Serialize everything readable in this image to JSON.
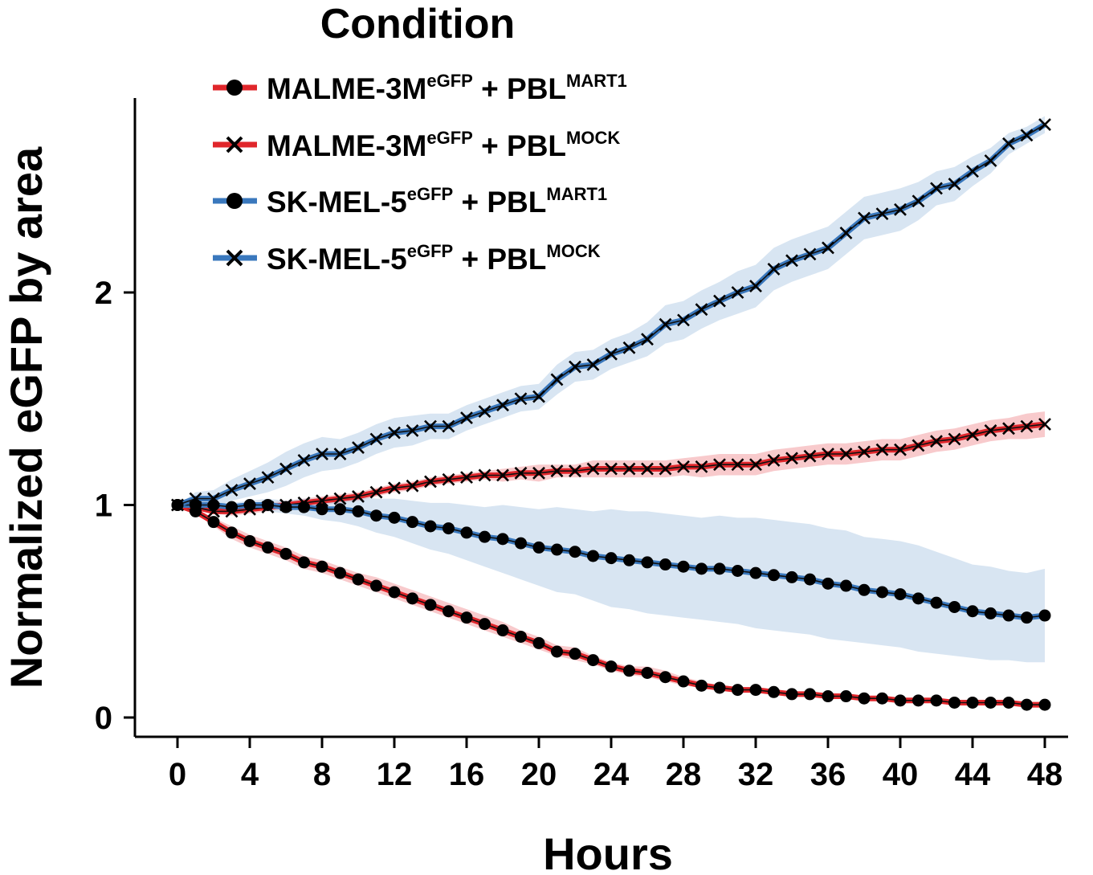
{
  "chart_data": {
    "type": "line",
    "xlabel": "Hours",
    "ylabel": "Normalized eGFP by area",
    "xlim": [
      0,
      48
    ],
    "ylim": [
      -0.05,
      2.9
    ],
    "xticks": [
      "0",
      "4",
      "8",
      "12",
      "16",
      "20",
      "24",
      "28",
      "32",
      "36",
      "40",
      "44",
      "48"
    ],
    "yticks": [
      "0",
      "1",
      "2"
    ],
    "legend": {
      "title": "Condition",
      "placement": "top-left"
    },
    "x": [
      0,
      1,
      2,
      3,
      4,
      5,
      6,
      7,
      8,
      9,
      10,
      11,
      12,
      13,
      14,
      15,
      16,
      17,
      18,
      19,
      20,
      21,
      22,
      23,
      24,
      25,
      26,
      27,
      28,
      29,
      30,
      31,
      32,
      33,
      34,
      35,
      36,
      37,
      38,
      39,
      40,
      41,
      42,
      43,
      44,
      45,
      46,
      47,
      48
    ],
    "series": [
      {
        "name": "MALME-3M eGFP + PBL MART1",
        "label": {
          "cell": "MALME-3M",
          "cell_sup": "eGFP",
          "mid": " + PBL",
          "pbl_sup": "MART1"
        },
        "color": "#e0262b",
        "ribbon_color": "#f08a8d",
        "marker": "circle",
        "values": [
          1.0,
          0.97,
          0.92,
          0.87,
          0.83,
          0.8,
          0.77,
          0.73,
          0.71,
          0.68,
          0.65,
          0.62,
          0.59,
          0.56,
          0.53,
          0.5,
          0.47,
          0.44,
          0.41,
          0.38,
          0.35,
          0.31,
          0.3,
          0.27,
          0.24,
          0.22,
          0.21,
          0.19,
          0.17,
          0.15,
          0.14,
          0.13,
          0.13,
          0.12,
          0.11,
          0.11,
          0.1,
          0.1,
          0.09,
          0.09,
          0.08,
          0.08,
          0.08,
          0.07,
          0.07,
          0.07,
          0.07,
          0.06,
          0.06
        ],
        "lower": [
          1.0,
          0.96,
          0.9,
          0.84,
          0.8,
          0.77,
          0.74,
          0.7,
          0.68,
          0.65,
          0.62,
          0.59,
          0.56,
          0.53,
          0.5,
          0.47,
          0.44,
          0.41,
          0.38,
          0.35,
          0.32,
          0.29,
          0.27,
          0.25,
          0.22,
          0.2,
          0.19,
          0.17,
          0.15,
          0.14,
          0.13,
          0.12,
          0.12,
          0.11,
          0.1,
          0.1,
          0.09,
          0.09,
          0.08,
          0.08,
          0.07,
          0.07,
          0.07,
          0.06,
          0.06,
          0.06,
          0.06,
          0.05,
          0.05
        ],
        "upper": [
          1.0,
          0.98,
          0.94,
          0.9,
          0.86,
          0.83,
          0.8,
          0.76,
          0.74,
          0.71,
          0.68,
          0.66,
          0.63,
          0.6,
          0.57,
          0.54,
          0.51,
          0.48,
          0.45,
          0.41,
          0.38,
          0.34,
          0.33,
          0.29,
          0.26,
          0.24,
          0.24,
          0.22,
          0.19,
          0.17,
          0.15,
          0.14,
          0.14,
          0.13,
          0.12,
          0.12,
          0.11,
          0.11,
          0.1,
          0.1,
          0.09,
          0.09,
          0.09,
          0.08,
          0.08,
          0.08,
          0.08,
          0.07,
          0.07
        ]
      },
      {
        "name": "MALME-3M eGFP + PBL MOCK",
        "label": {
          "cell": "MALME-3M",
          "cell_sup": "eGFP",
          "mid": " + PBL",
          "pbl_sup": "MOCK"
        },
        "color": "#e0262b",
        "ribbon_color": "#f08a8d",
        "marker": "x",
        "values": [
          1.0,
          0.99,
          0.97,
          0.97,
          0.98,
          0.99,
          1.0,
          1.01,
          1.02,
          1.03,
          1.04,
          1.06,
          1.08,
          1.09,
          1.11,
          1.12,
          1.13,
          1.14,
          1.14,
          1.15,
          1.15,
          1.16,
          1.16,
          1.17,
          1.17,
          1.17,
          1.17,
          1.17,
          1.18,
          1.18,
          1.19,
          1.19,
          1.19,
          1.21,
          1.22,
          1.23,
          1.24,
          1.24,
          1.25,
          1.26,
          1.26,
          1.28,
          1.3,
          1.31,
          1.33,
          1.35,
          1.36,
          1.37,
          1.38
        ],
        "lower": [
          1.0,
          0.98,
          0.96,
          0.95,
          0.96,
          0.97,
          0.98,
          0.99,
          1.0,
          1.01,
          1.02,
          1.04,
          1.06,
          1.07,
          1.09,
          1.1,
          1.11,
          1.12,
          1.11,
          1.12,
          1.11,
          1.13,
          1.13,
          1.13,
          1.13,
          1.13,
          1.13,
          1.13,
          1.14,
          1.13,
          1.14,
          1.14,
          1.14,
          1.16,
          1.17,
          1.18,
          1.19,
          1.19,
          1.2,
          1.21,
          1.21,
          1.23,
          1.25,
          1.26,
          1.28,
          1.3,
          1.31,
          1.31,
          1.32
        ],
        "upper": [
          1.0,
          1.0,
          0.98,
          0.99,
          1.0,
          1.01,
          1.02,
          1.03,
          1.04,
          1.05,
          1.06,
          1.08,
          1.1,
          1.11,
          1.13,
          1.14,
          1.15,
          1.16,
          1.17,
          1.18,
          1.19,
          1.19,
          1.19,
          1.21,
          1.21,
          1.21,
          1.21,
          1.21,
          1.22,
          1.23,
          1.24,
          1.24,
          1.24,
          1.26,
          1.27,
          1.28,
          1.29,
          1.29,
          1.3,
          1.31,
          1.31,
          1.33,
          1.35,
          1.36,
          1.38,
          1.4,
          1.41,
          1.43,
          1.44
        ]
      },
      {
        "name": "SK-MEL-5 eGFP + PBL MART1",
        "label": {
          "cell": "SK-MEL-5",
          "cell_sup": "eGFP",
          "mid": " + PBL",
          "pbl_sup": "MART1"
        },
        "color": "#3a78bd",
        "ribbon_color": "#a9c6e3",
        "marker": "circle",
        "values": [
          1.0,
          1.0,
          1.0,
          0.99,
          1.0,
          1.0,
          0.99,
          0.99,
          0.98,
          0.98,
          0.97,
          0.95,
          0.94,
          0.92,
          0.9,
          0.89,
          0.87,
          0.85,
          0.84,
          0.82,
          0.8,
          0.79,
          0.78,
          0.76,
          0.75,
          0.74,
          0.73,
          0.72,
          0.71,
          0.7,
          0.7,
          0.69,
          0.68,
          0.67,
          0.66,
          0.65,
          0.63,
          0.62,
          0.6,
          0.59,
          0.58,
          0.56,
          0.54,
          0.52,
          0.5,
          0.49,
          0.48,
          0.47,
          0.48
        ],
        "lower": [
          1.0,
          0.99,
          0.99,
          0.97,
          0.98,
          0.97,
          0.96,
          0.95,
          0.93,
          0.92,
          0.9,
          0.87,
          0.85,
          0.82,
          0.79,
          0.77,
          0.74,
          0.71,
          0.68,
          0.65,
          0.62,
          0.59,
          0.58,
          0.55,
          0.52,
          0.51,
          0.49,
          0.48,
          0.47,
          0.46,
          0.45,
          0.44,
          0.42,
          0.41,
          0.4,
          0.39,
          0.37,
          0.36,
          0.35,
          0.34,
          0.33,
          0.31,
          0.3,
          0.29,
          0.28,
          0.27,
          0.27,
          0.26,
          0.26
        ],
        "upper": [
          1.0,
          1.01,
          1.01,
          1.01,
          1.02,
          1.03,
          1.02,
          1.03,
          1.03,
          1.04,
          1.04,
          1.03,
          1.03,
          1.02,
          1.01,
          1.01,
          1.0,
          0.99,
          1.0,
          0.99,
          0.98,
          0.99,
          0.98,
          0.97,
          0.98,
          0.97,
          0.97,
          0.96,
          0.95,
          0.94,
          0.95,
          0.94,
          0.94,
          0.93,
          0.92,
          0.91,
          0.89,
          0.88,
          0.85,
          0.84,
          0.83,
          0.81,
          0.78,
          0.75,
          0.72,
          0.71,
          0.69,
          0.68,
          0.7
        ]
      },
      {
        "name": "SK-MEL-5 eGFP + PBL MOCK",
        "label": {
          "cell": "SK-MEL-5",
          "cell_sup": "eGFP",
          "mid": " + PBL",
          "pbl_sup": "MOCK"
        },
        "color": "#3a78bd",
        "ribbon_color": "#a9c6e3",
        "marker": "x",
        "values": [
          1.0,
          1.03,
          1.03,
          1.07,
          1.1,
          1.13,
          1.17,
          1.21,
          1.24,
          1.24,
          1.27,
          1.31,
          1.34,
          1.35,
          1.37,
          1.37,
          1.41,
          1.44,
          1.47,
          1.5,
          1.51,
          1.59,
          1.65,
          1.66,
          1.71,
          1.74,
          1.78,
          1.85,
          1.87,
          1.92,
          1.96,
          2.0,
          2.03,
          2.11,
          2.15,
          2.18,
          2.21,
          2.28,
          2.35,
          2.37,
          2.39,
          2.43,
          2.49,
          2.51,
          2.57,
          2.62,
          2.7,
          2.74,
          2.79
        ],
        "lower": [
          1.0,
          1.0,
          0.99,
          1.02,
          1.04,
          1.06,
          1.09,
          1.13,
          1.16,
          1.17,
          1.2,
          1.24,
          1.27,
          1.28,
          1.31,
          1.31,
          1.35,
          1.38,
          1.41,
          1.44,
          1.45,
          1.52,
          1.58,
          1.59,
          1.64,
          1.67,
          1.7,
          1.76,
          1.78,
          1.83,
          1.87,
          1.9,
          1.93,
          2.01,
          2.05,
          2.08,
          2.11,
          2.18,
          2.25,
          2.27,
          2.29,
          2.34,
          2.41,
          2.43,
          2.5,
          2.56,
          2.65,
          2.7,
          2.75
        ],
        "upper": [
          1.0,
          1.06,
          1.07,
          1.12,
          1.16,
          1.2,
          1.25,
          1.29,
          1.32,
          1.31,
          1.34,
          1.38,
          1.41,
          1.42,
          1.43,
          1.43,
          1.47,
          1.5,
          1.53,
          1.56,
          1.57,
          1.66,
          1.72,
          1.73,
          1.78,
          1.81,
          1.86,
          1.94,
          1.96,
          2.01,
          2.05,
          2.1,
          2.13,
          2.21,
          2.25,
          2.28,
          2.31,
          2.38,
          2.45,
          2.47,
          2.49,
          2.52,
          2.57,
          2.59,
          2.64,
          2.68,
          2.75,
          2.78,
          2.83
        ]
      }
    ]
  }
}
